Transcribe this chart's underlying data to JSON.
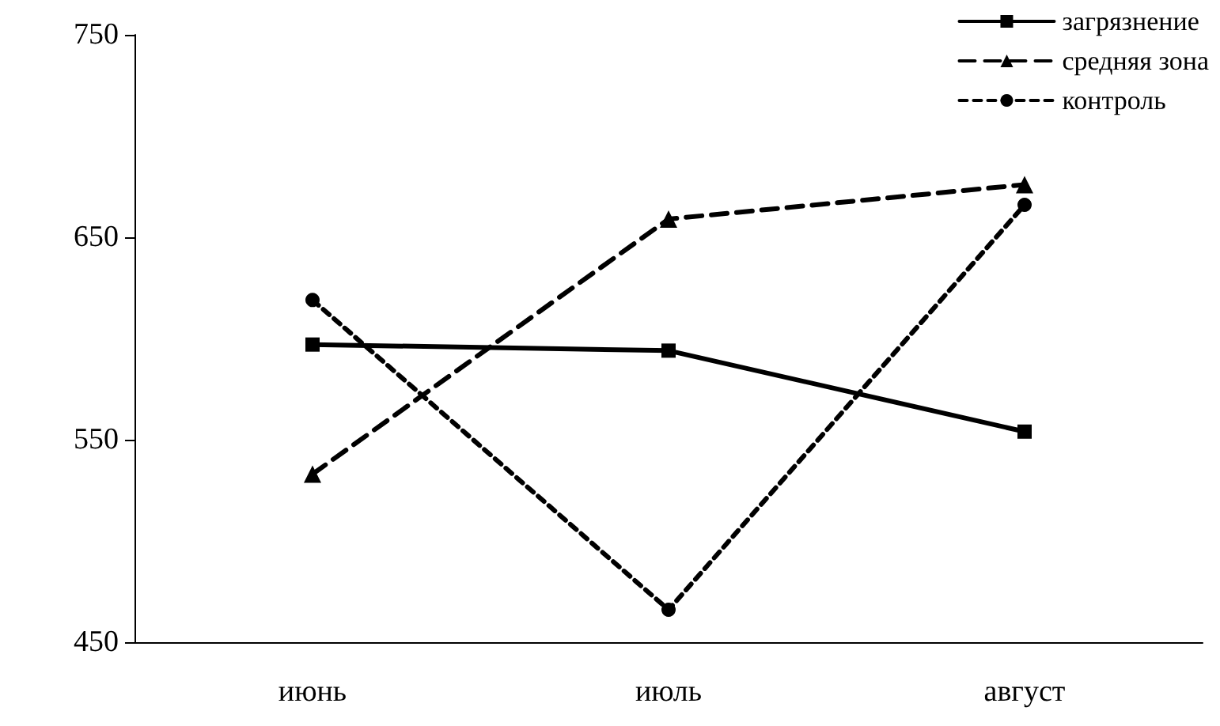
{
  "chart_data": {
    "type": "line",
    "categories": [
      "июнь",
      "июль",
      "август"
    ],
    "series": [
      {
        "name": "загрязнение",
        "color": "#000000",
        "values": [
          597,
          594,
          554
        ],
        "marker": "square",
        "line_style": "solid"
      },
      {
        "name": "средняя зона",
        "color": "#000000",
        "values": [
          533,
          659,
          676
        ],
        "marker": "triangle",
        "line_style": "dashed"
      },
      {
        "name": "контроль",
        "color": "#000000",
        "values": [
          619,
          466,
          666
        ],
        "marker": "circle",
        "line_style": "dotted"
      }
    ],
    "ylim": [
      450,
      750
    ],
    "yticks": [
      450,
      550,
      650,
      750
    ],
    "grid": false,
    "legend": "top right"
  }
}
